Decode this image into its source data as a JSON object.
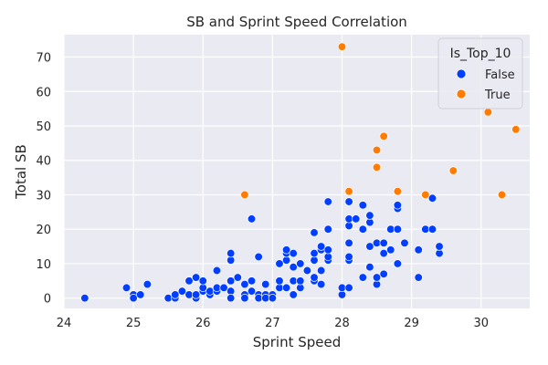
{
  "chart_data": {
    "type": "scatter",
    "title": "SB and Sprint Speed Correlation",
    "xlabel": "Sprint Speed",
    "ylabel": "Total SB",
    "xlim": [
      24,
      30.7
    ],
    "ylim": [
      -3,
      76.5
    ],
    "xticks": [
      24,
      25,
      26,
      27,
      28,
      29,
      30
    ],
    "yticks": [
      0,
      10,
      20,
      30,
      40,
      50,
      60,
      70
    ],
    "grid": true,
    "legend": {
      "title": "Is_Top_10",
      "placement": "top-right",
      "entries": [
        {
          "label": "False",
          "color": "#023eff"
        },
        {
          "label": "True",
          "color": "#ff7c00"
        }
      ]
    },
    "series": [
      {
        "name": "False",
        "color": "#023eff",
        "points": [
          [
            24.3,
            0
          ],
          [
            24.9,
            3
          ],
          [
            25.0,
            1
          ],
          [
            25.0,
            0
          ],
          [
            25.1,
            1
          ],
          [
            25.2,
            4
          ],
          [
            25.5,
            0
          ],
          [
            25.6,
            0
          ],
          [
            25.6,
            1
          ],
          [
            25.7,
            2
          ],
          [
            25.8,
            1
          ],
          [
            25.8,
            5
          ],
          [
            25.9,
            0
          ],
          [
            25.9,
            1
          ],
          [
            25.9,
            6
          ],
          [
            26.0,
            2
          ],
          [
            26.0,
            3
          ],
          [
            26.0,
            5
          ],
          [
            26.1,
            1
          ],
          [
            26.1,
            2
          ],
          [
            26.2,
            2
          ],
          [
            26.2,
            3
          ],
          [
            26.2,
            8
          ],
          [
            26.3,
            3
          ],
          [
            26.4,
            2
          ],
          [
            26.4,
            5
          ],
          [
            26.4,
            11
          ],
          [
            26.4,
            13
          ],
          [
            26.4,
            0
          ],
          [
            26.5,
            6
          ],
          [
            26.6,
            1
          ],
          [
            26.6,
            0
          ],
          [
            26.6,
            4
          ],
          [
            26.7,
            23
          ],
          [
            26.7,
            2
          ],
          [
            26.7,
            5
          ],
          [
            26.8,
            1
          ],
          [
            26.8,
            0
          ],
          [
            26.8,
            12
          ],
          [
            26.9,
            1
          ],
          [
            26.9,
            0
          ],
          [
            26.9,
            4
          ],
          [
            27.0,
            1
          ],
          [
            27.0,
            0
          ],
          [
            27.1,
            3
          ],
          [
            27.1,
            5
          ],
          [
            27.1,
            10
          ],
          [
            27.2,
            11
          ],
          [
            27.2,
            13
          ],
          [
            27.2,
            14
          ],
          [
            27.2,
            3
          ],
          [
            27.3,
            1
          ],
          [
            27.3,
            5
          ],
          [
            27.3,
            9
          ],
          [
            27.3,
            13
          ],
          [
            27.4,
            3
          ],
          [
            27.4,
            5
          ],
          [
            27.4,
            10
          ],
          [
            27.5,
            8
          ],
          [
            27.6,
            5
          ],
          [
            27.6,
            6
          ],
          [
            27.6,
            11
          ],
          [
            27.6,
            13
          ],
          [
            27.6,
            19
          ],
          [
            27.7,
            4
          ],
          [
            27.7,
            8
          ],
          [
            27.7,
            14
          ],
          [
            27.7,
            15
          ],
          [
            27.8,
            11
          ],
          [
            27.8,
            12
          ],
          [
            27.8,
            14
          ],
          [
            27.8,
            20
          ],
          [
            27.8,
            28
          ],
          [
            28.0,
            1
          ],
          [
            28.0,
            3
          ],
          [
            28.1,
            3
          ],
          [
            28.1,
            11
          ],
          [
            28.1,
            12
          ],
          [
            28.1,
            16
          ],
          [
            28.1,
            21
          ],
          [
            28.1,
            23
          ],
          [
            28.1,
            28
          ],
          [
            28.2,
            23
          ],
          [
            28.3,
            6
          ],
          [
            28.3,
            20
          ],
          [
            28.3,
            27
          ],
          [
            28.4,
            9
          ],
          [
            28.4,
            15
          ],
          [
            28.4,
            22
          ],
          [
            28.4,
            24
          ],
          [
            28.5,
            4
          ],
          [
            28.5,
            6
          ],
          [
            28.5,
            16
          ],
          [
            28.6,
            7
          ],
          [
            28.6,
            13
          ],
          [
            28.6,
            16
          ],
          [
            28.7,
            14
          ],
          [
            28.7,
            20
          ],
          [
            28.8,
            10
          ],
          [
            28.8,
            20
          ],
          [
            28.8,
            26
          ],
          [
            28.8,
            27
          ],
          [
            28.9,
            16
          ],
          [
            29.1,
            6
          ],
          [
            29.1,
            14
          ],
          [
            29.2,
            20
          ],
          [
            29.3,
            20
          ],
          [
            29.3,
            29
          ],
          [
            29.4,
            13
          ],
          [
            29.4,
            15
          ]
        ]
      },
      {
        "name": "True",
        "color": "#ff7c00",
        "points": [
          [
            26.6,
            30
          ],
          [
            28.0,
            73
          ],
          [
            28.1,
            31
          ],
          [
            28.5,
            38
          ],
          [
            28.5,
            43
          ],
          [
            28.6,
            47
          ],
          [
            28.8,
            31
          ],
          [
            29.2,
            30
          ],
          [
            29.6,
            37
          ],
          [
            30.1,
            54
          ],
          [
            30.3,
            30
          ],
          [
            30.5,
            49
          ]
        ]
      }
    ]
  }
}
